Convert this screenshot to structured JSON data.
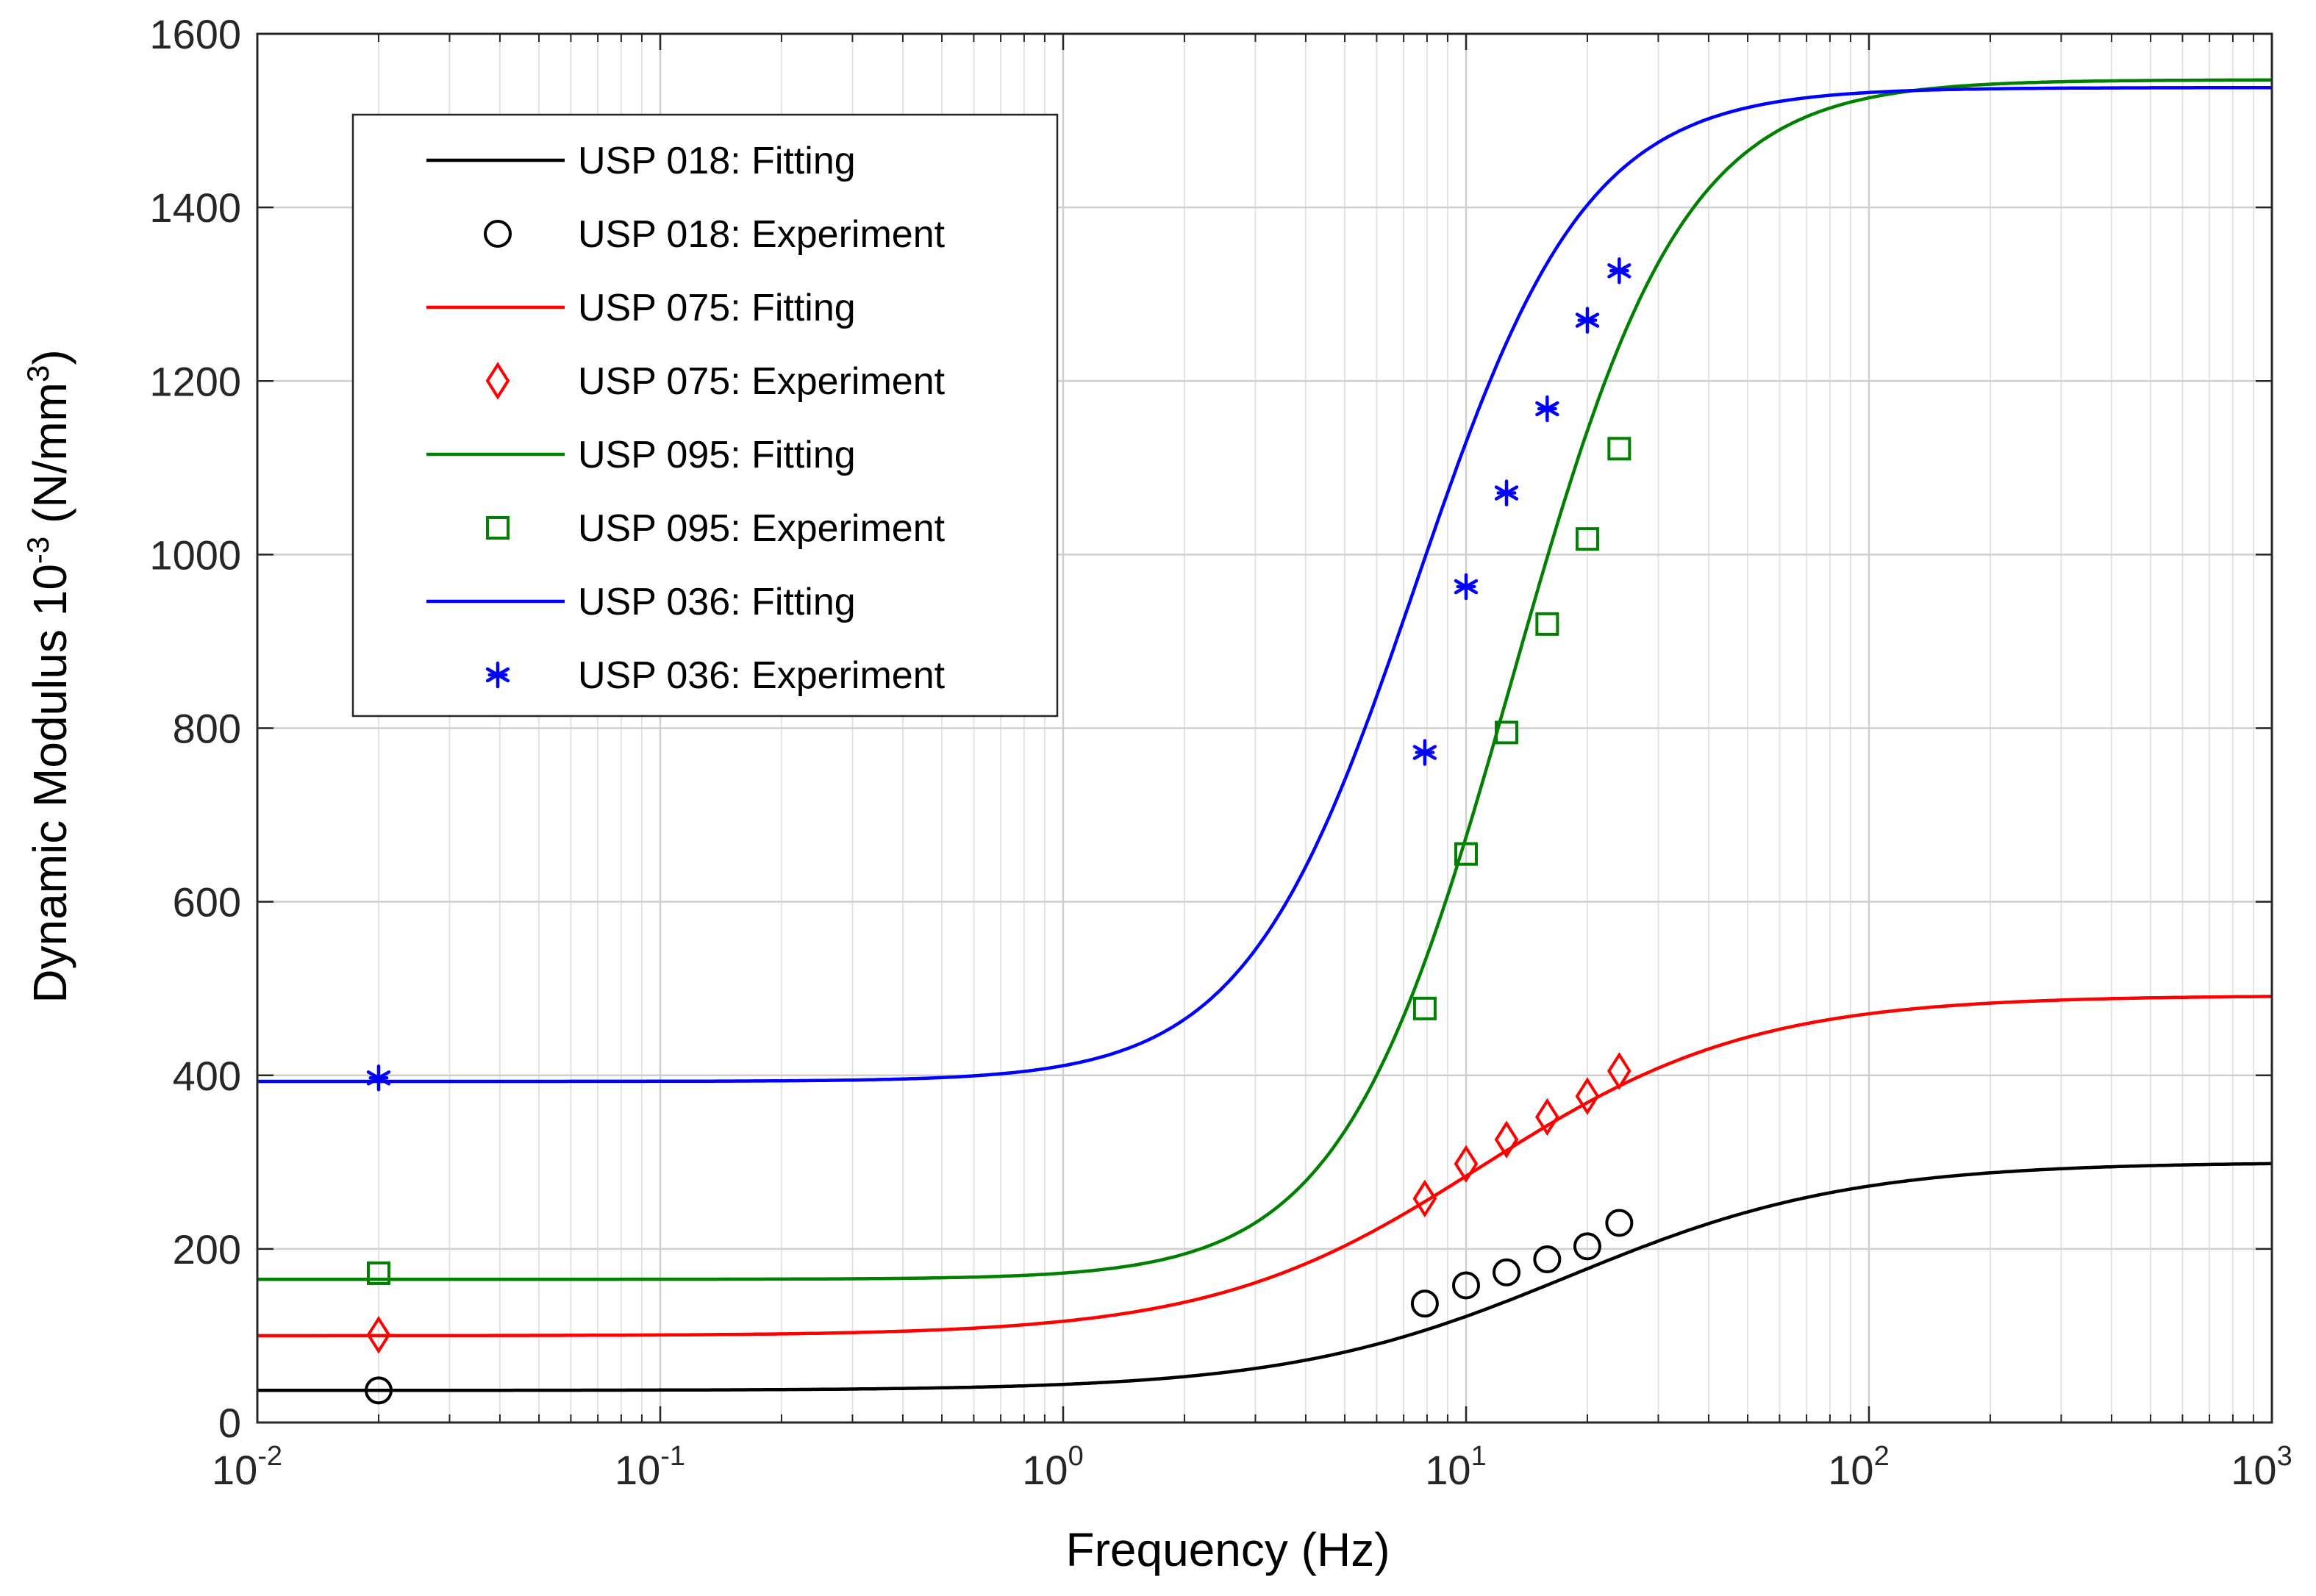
{
  "chart_data": {
    "type": "line",
    "xscale": "log",
    "xlim": [
      0.01,
      1000
    ],
    "ylim": [
      0,
      1600
    ],
    "xlabel": "Frequency (Hz)",
    "ylabel_main": "Dynamic Modulus 10",
    "ylabel_exp": "-3",
    "ylabel_unit_pre": " (N/mm",
    "ylabel_unit_exp": "3",
    "ylabel_unit_post": ")",
    "grid": true,
    "legend_position": "top-left",
    "x_ticks": [
      {
        "base": "10",
        "exp": "-2",
        "value": 0.01
      },
      {
        "base": "10",
        "exp": "-1",
        "value": 0.1
      },
      {
        "base": "10",
        "exp": "0",
        "value": 1
      },
      {
        "base": "10",
        "exp": "1",
        "value": 10
      },
      {
        "base": "10",
        "exp": "2",
        "value": 100
      },
      {
        "base": "10",
        "exp": "3",
        "value": 1000
      }
    ],
    "y_ticks": [
      "0",
      "200",
      "400",
      "600",
      "800",
      "1000",
      "1200",
      "1400",
      "1600"
    ],
    "series": [
      {
        "name": "USP 018",
        "fit_label": "USP 018: Fitting",
        "exp_label": "USP 018: Experiment",
        "color": "#000000",
        "marker": "circle",
        "fit": {
          "low": 37,
          "high": 300,
          "mid": 18,
          "steep": 1.25
        },
        "experiment": {
          "x": [
            0.02,
            7.9,
            10,
            12.6,
            15.9,
            20,
            24
          ],
          "y": [
            37,
            137,
            158,
            173,
            188,
            203,
            230
          ]
        }
      },
      {
        "name": "USP 075",
        "fit_label": "USP 075: Fitting",
        "exp_label": "USP 075: Experiment",
        "color": "#ff0000",
        "marker": "diamond",
        "fit": {
          "low": 100,
          "high": 492,
          "mid": 11,
          "steep": 1.3
        },
        "experiment": {
          "x": [
            0.02,
            7.9,
            10,
            12.6,
            15.9,
            20,
            24
          ],
          "y": [
            101,
            258,
            298,
            326,
            352,
            376,
            405
          ]
        }
      },
      {
        "name": "USP 095",
        "fit_label": "USP 095: Fitting",
        "exp_label": "USP 095: Experiment",
        "color": "#008000",
        "marker": "square",
        "fit": {
          "low": 165,
          "high": 1547,
          "mid": 13,
          "steep": 2.05
        },
        "experiment": {
          "x": [
            0.02,
            7.9,
            10,
            12.6,
            15.9,
            20,
            24
          ],
          "y": [
            172,
            477,
            655,
            795,
            920,
            1018,
            1122
          ]
        }
      },
      {
        "name": "USP 036",
        "fit_label": "USP 036: Fitting",
        "exp_label": "USP 036: Experiment",
        "color": "#0000ff",
        "marker": "asterisk",
        "fit": {
          "low": 393,
          "high": 1538,
          "mid": 7.5,
          "steep": 2.05
        },
        "experiment": {
          "x": [
            0.02,
            7.9,
            10,
            12.6,
            15.9,
            20,
            24
          ],
          "y": [
            397,
            772,
            963,
            1071,
            1168,
            1270,
            1327
          ]
        }
      }
    ]
  }
}
